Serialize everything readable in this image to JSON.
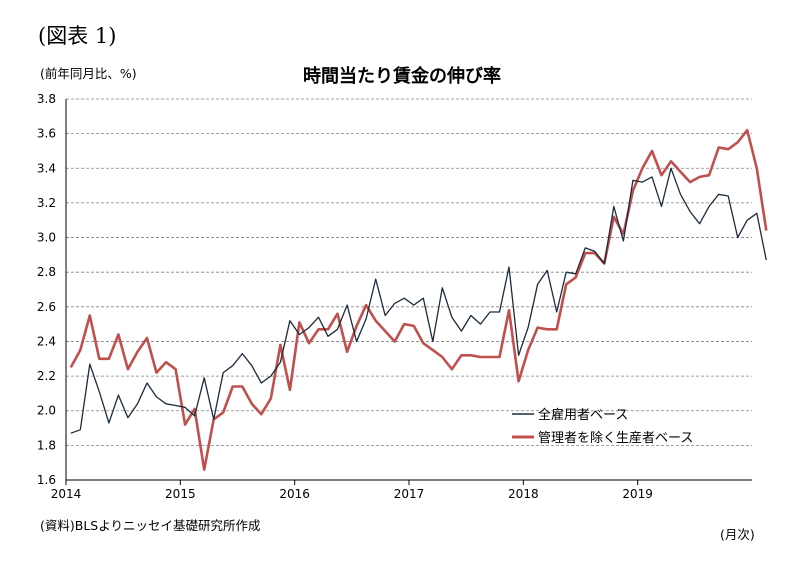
{
  "figure_label": "(図表 1)",
  "unit_label": "(前年同月比、%)",
  "source": "(資料)BLSよりニッセイ基礎研究所作成",
  "x_unit": "(月次)",
  "colors": {
    "series1": "#1c2b3d",
    "series2": "#c0504d",
    "grid": "#808080"
  },
  "chart_data": {
    "type": "line",
    "title": "時間当たり賃金の伸び率",
    "ylim": [
      1.6,
      3.8
    ],
    "yticks": [
      "1.6",
      "1.8",
      "2.0",
      "2.2",
      "2.4",
      "2.6",
      "2.8",
      "3.0",
      "3.2",
      "3.4",
      "3.6",
      "3.8"
    ],
    "xticks": [
      "2014",
      "2015",
      "2016",
      "2017",
      "2018",
      "2019"
    ],
    "grid": true,
    "legend": "bottom-right",
    "x_start": "2014-01",
    "x_end": "2019-12",
    "series": [
      {
        "name": "全雇用者ベース",
        "values": [
          1.87,
          1.89,
          2.27,
          2.11,
          1.93,
          2.09,
          1.96,
          2.04,
          2.16,
          2.08,
          2.04,
          2.03,
          2.02,
          1.97,
          2.19,
          1.95,
          2.22,
          2.26,
          2.33,
          2.26,
          2.16,
          2.2,
          2.28,
          2.52,
          2.44,
          2.48,
          2.54,
          2.43,
          2.47,
          2.61,
          2.4,
          2.53,
          2.76,
          2.55,
          2.62,
          2.65,
          2.61,
          2.65,
          2.4,
          2.71,
          2.54,
          2.46,
          2.55,
          2.5,
          2.57,
          2.57,
          2.83,
          2.32,
          2.48,
          2.73,
          2.81,
          2.57,
          2.8,
          2.79,
          2.94,
          2.92,
          2.85,
          3.18,
          2.98,
          3.33,
          3.32,
          3.35,
          3.18,
          3.4,
          3.25,
          3.15,
          3.08,
          3.18,
          3.25,
          3.24,
          3.0,
          3.1,
          3.14,
          2.87
        ]
      },
      {
        "name": "管理者を除く生産者ベース",
        "values": [
          2.25,
          2.35,
          2.55,
          2.3,
          2.3,
          2.44,
          2.24,
          2.34,
          2.42,
          2.22,
          2.28,
          2.24,
          1.92,
          2.01,
          1.66,
          1.95,
          1.99,
          2.14,
          2.14,
          2.04,
          1.98,
          2.07,
          2.38,
          2.12,
          2.51,
          2.39,
          2.47,
          2.47,
          2.56,
          2.34,
          2.49,
          2.61,
          2.52,
          2.46,
          2.4,
          2.5,
          2.49,
          2.39,
          2.35,
          2.31,
          2.24,
          2.32,
          2.32,
          2.31,
          2.31,
          2.31,
          2.58,
          2.17,
          2.35,
          2.48,
          2.47,
          2.47,
          2.73,
          2.77,
          2.91,
          2.91,
          2.85,
          3.12,
          3.02,
          3.27,
          3.4,
          3.5,
          3.36,
          3.44,
          3.38,
          3.32,
          3.35,
          3.36,
          3.52,
          3.51,
          3.55,
          3.62,
          3.4,
          3.04
        ]
      }
    ]
  }
}
